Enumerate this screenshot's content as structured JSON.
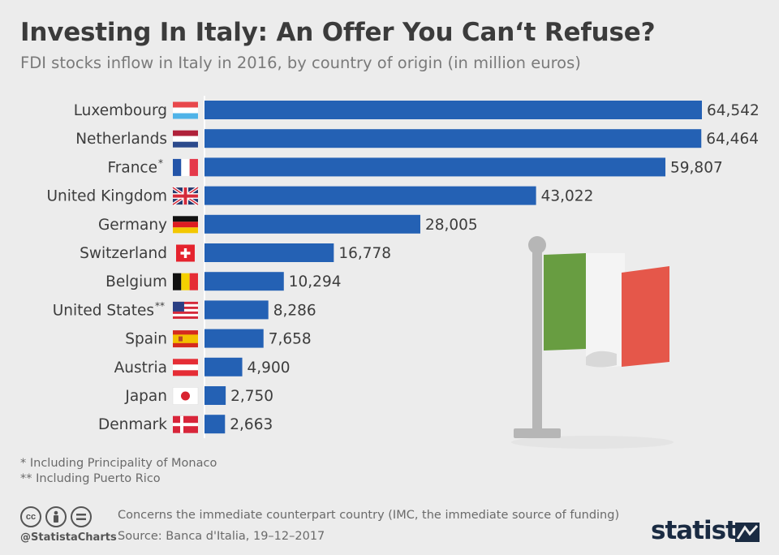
{
  "header": {
    "title": "Investing In Italy: An Offer You Can‘t Refuse?",
    "subtitle": "FDI stocks inflow in Italy in 2016, by country of origin (in million euros)"
  },
  "chart_data": {
    "type": "bar",
    "orientation": "horizontal",
    "categories": [
      "Luxembourg",
      "Netherlands",
      "France",
      "United Kingdom",
      "Germany",
      "Switzerland",
      "Belgium",
      "United States",
      "Spain",
      "Austria",
      "Japan",
      "Denmark"
    ],
    "category_marks": [
      "",
      "",
      "*",
      "",
      "",
      "",
      "",
      "**",
      "",
      "",
      "",
      ""
    ],
    "values": [
      64542,
      64464,
      59807,
      43022,
      28005,
      16778,
      10294,
      8286,
      7658,
      4900,
      2750,
      2663
    ],
    "value_labels": [
      "64,542",
      "64,464",
      "59,807",
      "43,022",
      "28,005",
      "16,778",
      "10,294",
      "8,286",
      "7,658",
      "4,900",
      "2,750",
      "2,663"
    ],
    "flags": [
      "luxembourg-flag-icon",
      "netherlands-flag-icon",
      "france-flag-icon",
      "uk-flag-icon",
      "germany-flag-icon",
      "switzerland-flag-icon",
      "belgium-flag-icon",
      "usa-flag-icon",
      "spain-flag-icon",
      "austria-flag-icon",
      "japan-flag-icon",
      "denmark-flag-icon"
    ],
    "xlim": [
      0,
      64542
    ],
    "bar_color": "#2461b4",
    "grid": false,
    "legend": "none"
  },
  "notes": {
    "note1": "*   Including Principality of Monaco",
    "note2": "** Including Puerto Rico"
  },
  "footer": {
    "line1": "Concerns the immediate counterpart country (IMC, the immediate source of funding)",
    "line2": "Source: Banca d'Italia, 19–12–2017",
    "handle": "@StatistaCharts",
    "brand": "statista",
    "cc_icons": [
      "cc-icon",
      "by-icon",
      "nd-icon"
    ]
  },
  "decoration": {
    "italy_flag_colors": [
      "#689d41",
      "#f4f4f4",
      "#e5574a"
    ]
  }
}
